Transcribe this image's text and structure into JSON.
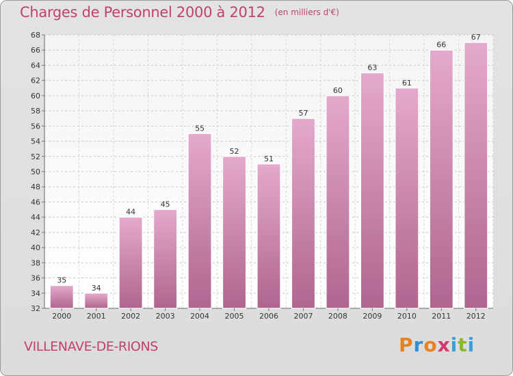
{
  "header": {
    "title": "Charges de Personnel 2000 à 2012",
    "unit": "(en milliers d'€)"
  },
  "footer": {
    "city": "VILLENAVE-DE-RIONS",
    "logo_letters": [
      "P",
      "r",
      "o",
      "x",
      "i",
      "t",
      "i"
    ]
  },
  "colors": {
    "title": "#c2406e",
    "bar_top": "#e4a9cc",
    "bar_bottom": "#b0658f",
    "logo": [
      "#e8821f",
      "#2f8fd0",
      "#e8821f",
      "#d23a6a",
      "#3aa0d8",
      "#8ab82e",
      "#3aa0d8"
    ]
  },
  "chart_data": {
    "type": "bar",
    "title": "Charges de Personnel 2000 à 2012",
    "subtitle": "(en milliers d'€)",
    "categories": [
      "2000",
      "2001",
      "2002",
      "2003",
      "2004",
      "2005",
      "2006",
      "2007",
      "2008",
      "2009",
      "2010",
      "2011",
      "2012"
    ],
    "values": [
      35,
      34,
      44,
      45,
      55,
      52,
      51,
      57,
      60,
      63,
      61,
      66,
      67
    ],
    "ylim": [
      32,
      68
    ],
    "yticks": [
      32,
      34,
      36,
      38,
      40,
      42,
      44,
      46,
      48,
      50,
      52,
      54,
      56,
      58,
      60,
      62,
      64,
      66,
      68
    ],
    "xlabel": "",
    "ylabel": "",
    "grid": true
  }
}
